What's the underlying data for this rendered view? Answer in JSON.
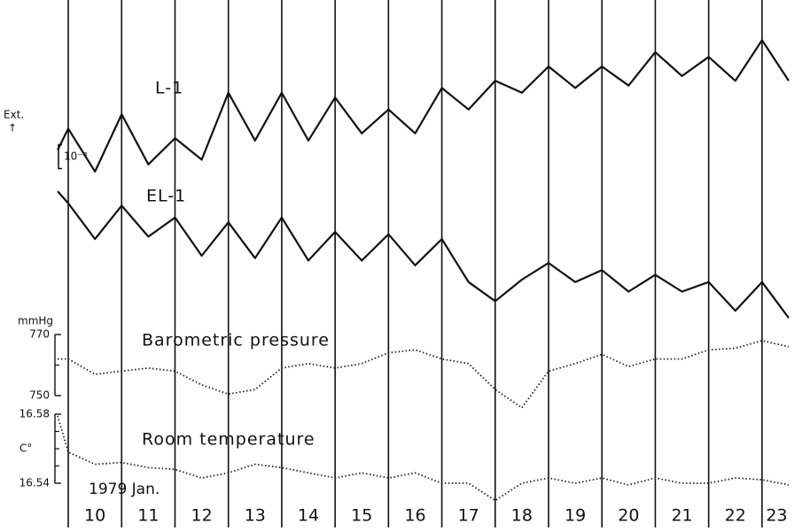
{
  "chart_data": {
    "type": "line",
    "ylabel": "Ext.",
    "ylabel_arrow": "↑",
    "xlabel": "1979 Jan.",
    "xlim": [
      9.8,
      23.55
    ],
    "xticks": [
      10,
      11,
      12,
      13,
      14,
      15,
      16,
      17,
      18,
      19,
      20,
      21,
      22,
      23
    ],
    "x": [
      9.8,
      10,
      10.5,
      11,
      11.5,
      12,
      12.5,
      13,
      13.5,
      14,
      14.5,
      15,
      15.5,
      16,
      16.5,
      17,
      17.5,
      18,
      18.5,
      19,
      19.5,
      20,
      20.5,
      21,
      21.5,
      22,
      22.5,
      23,
      23.5
    ],
    "scale_bar": {
      "label": "10⁻⁸",
      "value": 1
    },
    "series": [
      {
        "name": "L-1",
        "color": "#111111",
        "line_style": "solid",
        "ylim": [
          0,
          10
        ],
        "values": [
          5.2,
          6.1,
          4.3,
          6.7,
          4.6,
          5.7,
          4.8,
          7.6,
          5.6,
          7.6,
          5.6,
          7.4,
          5.9,
          6.9,
          5.9,
          7.8,
          6.9,
          8.1,
          7.6,
          8.7,
          7.8,
          8.7,
          7.9,
          9.3,
          8.3,
          9.1,
          8.1,
          9.8,
          8.1
        ]
      },
      {
        "name": "EL-1",
        "color": "#111111",
        "line_style": "solid",
        "ylim": [
          0,
          6
        ],
        "values": [
          5.7,
          5.2,
          3.7,
          5.1,
          3.8,
          4.6,
          3.0,
          4.4,
          2.9,
          4.6,
          2.8,
          4.0,
          2.8,
          3.9,
          2.6,
          3.7,
          1.9,
          1.1,
          2.0,
          2.7,
          1.9,
          2.4,
          1.5,
          2.2,
          1.5,
          1.9,
          0.7,
          1.9,
          0.4
        ]
      },
      {
        "name": "Barometric pressure",
        "unit": "mmHg",
        "color": "#222222",
        "line_style": "dotted",
        "ylim": [
          750,
          770
        ],
        "yticks": [
          750,
          770
        ],
        "minor_yticks": [
          760
        ],
        "values": [
          762,
          762,
          757,
          758,
          759,
          758,
          753.5,
          750.5,
          752,
          759,
          760.5,
          759,
          760.5,
          764,
          765,
          762,
          760.5,
          752,
          746,
          758,
          760.5,
          763.5,
          759.5,
          762,
          762,
          765,
          765.5,
          768,
          766
        ]
      },
      {
        "name": "Room temperature",
        "unit": "C°",
        "color": "#222222",
        "line_style": "dotted",
        "ylim": [
          16.54,
          16.58
        ],
        "yticks": [
          16.54,
          16.58
        ],
        "minor_yticks": [
          16.55,
          16.56,
          16.57
        ],
        "values": [
          16.579,
          16.558,
          16.551,
          16.552,
          16.549,
          16.548,
          16.543,
          16.546,
          16.551,
          16.549,
          16.546,
          16.543,
          16.546,
          16.543,
          16.546,
          16.54,
          16.54,
          16.53,
          16.54,
          16.543,
          16.54,
          16.543,
          16.539,
          16.543,
          16.54,
          16.54,
          16.543,
          16.542,
          16.539
        ]
      }
    ]
  }
}
